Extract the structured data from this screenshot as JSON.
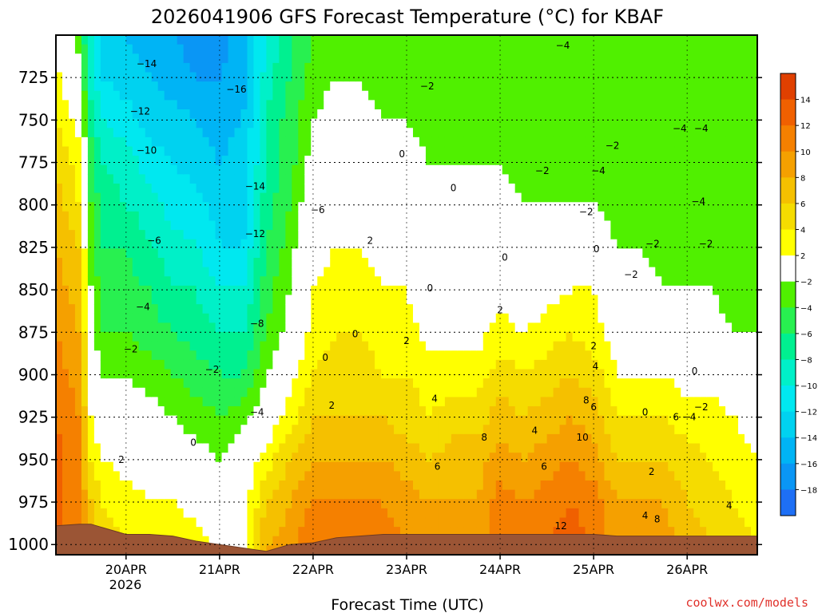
{
  "chart_data": {
    "type": "heatmap",
    "title": "2026041906 GFS Forecast Temperature (°C) for KBAF",
    "xlabel": "Forecast Time (UTC)",
    "ylabel": "",
    "credit": "coolwx.com/models",
    "yaxis": {
      "ticks": [
        725,
        750,
        775,
        800,
        825,
        850,
        875,
        900,
        925,
        950,
        975,
        1000
      ],
      "range": [
        700,
        1006
      ],
      "inverted": true
    },
    "xaxis": {
      "ticks": [
        "20APR",
        "21APR",
        "22APR",
        "23APR",
        "24APR",
        "25APR",
        "26APR"
      ],
      "sublabel": "2026",
      "range_days": [
        -0.75,
        6.75
      ]
    },
    "colorbar": {
      "levels": [
        -20,
        -18,
        -16,
        -14,
        -12,
        -10,
        -8,
        -6,
        -4,
        -2,
        2,
        4,
        6,
        8,
        10,
        12,
        14,
        16
      ],
      "labels": [
        "-18",
        "-16",
        "-14",
        "-12",
        "-10",
        "-8",
        "-6",
        "-4",
        "-2",
        "2",
        "4",
        "6",
        "8",
        "10",
        "12",
        "14"
      ],
      "colors": [
        "#1e6ff5",
        "#0a96f5",
        "#00b4f5",
        "#00d2f0",
        "#00e8f0",
        "#00f0c8",
        "#00f090",
        "#28f050",
        "#50f000",
        "#ffffff",
        "#ffff00",
        "#f5dc00",
        "#f5c000",
        "#f5a000",
        "#f58000",
        "#f06000",
        "#e04000"
      ]
    },
    "time_days": [
      -0.75,
      -0.5,
      -0.375,
      -0.25,
      0,
      0.25,
      0.5,
      0.75,
      1,
      1.25,
      1.5,
      1.75,
      2,
      2.25,
      2.5,
      2.75,
      3,
      3.25,
      3.5,
      3.75,
      4,
      4.25,
      4.5,
      4.75,
      5,
      5.25,
      5.5,
      5.75,
      6,
      6.25,
      6.5,
      6.75
    ],
    "pressure_levels": [
      700,
      725,
      750,
      775,
      800,
      825,
      850,
      875,
      900,
      925,
      950,
      975,
      1000
    ],
    "temperature_profiles": [
      [
        0,
        3,
        4,
        6,
        7,
        8,
        9,
        10,
        11,
        12,
        13,
        13,
        13
      ],
      [
        -3,
        -1,
        1,
        3,
        4,
        6,
        7,
        8,
        9,
        10,
        10,
        10,
        10
      ],
      [
        -10,
        -9,
        -7,
        -5,
        -4,
        -3,
        -2,
        -1,
        0,
        2,
        4,
        6,
        7
      ],
      [
        -13,
        -12,
        -10,
        -8,
        -7,
        -6,
        -5,
        -4,
        -2,
        0,
        2,
        4,
        5
      ],
      [
        -14,
        -13,
        -11,
        -9,
        -8,
        -6,
        -5,
        -4,
        -2,
        -1,
        1,
        3,
        4
      ],
      [
        -15,
        -14,
        -13,
        -11,
        -9,
        -8,
        -6,
        -5,
        -3,
        -1,
        1,
        2,
        3
      ],
      [
        -16,
        -15,
        -13,
        -12,
        -11,
        -9,
        -8,
        -6,
        -4,
        -2,
        0,
        2,
        4
      ],
      [
        -17,
        -16,
        -14,
        -13,
        -11,
        -10,
        -8,
        -7,
        -5,
        -3,
        -1,
        1,
        3
      ],
      [
        -17,
        -16,
        -15,
        -14,
        -13,
        -12,
        -10,
        -8,
        -6,
        -4,
        -2,
        0,
        1
      ],
      [
        -15,
        -15,
        -14,
        -13,
        -13,
        -12,
        -10,
        -8,
        -6,
        -3,
        0,
        1,
        0
      ],
      [
        -10,
        -9,
        -8,
        -8,
        -7,
        -6,
        -5,
        -4,
        -2,
        0,
        3,
        6,
        8
      ],
      [
        -6,
        -6,
        -5,
        -5,
        -4,
        -3,
        -2,
        -1,
        1,
        3,
        6,
        8,
        9
      ],
      [
        -4,
        -3,
        -2,
        -1,
        0,
        1,
        2,
        3,
        4,
        6,
        8,
        10,
        12
      ],
      [
        -3,
        -2,
        -1,
        0,
        1,
        2,
        3,
        4,
        5,
        6,
        8,
        10,
        12
      ],
      [
        -3,
        -2,
        -1,
        0,
        1,
        2,
        3,
        4,
        5,
        6,
        8,
        10,
        11
      ],
      [
        -3,
        -3,
        -2,
        -1,
        0,
        1,
        2,
        3,
        4,
        6,
        8,
        10,
        11
      ],
      [
        -3,
        -3,
        -2,
        -1,
        0,
        1,
        2,
        3,
        4,
        5,
        7,
        9,
        10
      ],
      [
        -3,
        -3,
        -3,
        -2,
        -2,
        -1,
        0,
        1,
        3,
        4,
        6,
        8,
        9
      ],
      [
        -4,
        -3,
        -3,
        -2,
        -2,
        -1,
        0,
        1,
        3,
        5,
        7,
        8,
        9
      ],
      [
        -4,
        -3,
        -3,
        -2,
        -2,
        -1,
        0,
        1,
        3,
        5,
        7,
        8,
        9
      ],
      [
        -4,
        -3,
        -3,
        -2,
        -1,
        0,
        1,
        3,
        5,
        7,
        9,
        11,
        12
      ],
      [
        -4,
        -4,
        -3,
        -3,
        -2,
        -1,
        0,
        2,
        4,
        6,
        8,
        10,
        11
      ],
      [
        -4,
        -4,
        -3,
        -3,
        -2,
        -1,
        1,
        3,
        5,
        7,
        9,
        11,
        12
      ],
      [
        -4,
        -4,
        -3,
        -3,
        -2,
        0,
        2,
        4,
        6,
        8,
        10,
        12,
        13
      ],
      [
        -4,
        -4,
        -3,
        -3,
        -2,
        0,
        2,
        3,
        5,
        7,
        9,
        11,
        12
      ],
      [
        -4,
        -4,
        -4,
        -3,
        -3,
        -2,
        -1,
        1,
        2,
        4,
        6,
        8,
        9
      ],
      [
        -4,
        -4,
        -4,
        -4,
        -3,
        -2,
        -1,
        1,
        2,
        4,
        6,
        8,
        9
      ],
      [
        -4,
        -4,
        -4,
        -4,
        -3,
        -3,
        -2,
        0,
        2,
        4,
        6,
        8,
        9
      ],
      [
        -4,
        -4,
        -4,
        -4,
        -3,
        -3,
        -2,
        -1,
        1,
        3,
        5,
        6,
        7
      ],
      [
        -4,
        -4,
        -4,
        -4,
        -4,
        -3,
        -2,
        -1,
        1,
        3,
        4,
        5,
        6
      ],
      [
        -4,
        -4,
        -4,
        -4,
        -4,
        -3,
        -3,
        -2,
        0,
        2,
        3,
        4,
        5
      ],
      [
        -4,
        -4,
        -4,
        -4,
        -4,
        -3,
        -3,
        -2,
        0,
        1,
        2,
        3,
        4
      ]
    ],
    "terrain_pressure": [
      989,
      988,
      988,
      990,
      994,
      994,
      995,
      998,
      1000,
      1002,
      1004,
      1000,
      999,
      996,
      995,
      994,
      994,
      994,
      994,
      994,
      994,
      994,
      994,
      994,
      994,
      995,
      995,
      995,
      995,
      995,
      995,
      995
    ],
    "terrain_color": "#9b5535",
    "contour_labels": [
      {
        "text": "−14",
        "day": 0.22,
        "p": 717
      },
      {
        "text": "−12",
        "day": 0.15,
        "p": 745
      },
      {
        "text": "−10",
        "day": 0.22,
        "p": 768
      },
      {
        "text": "−6",
        "day": 0.3,
        "p": 821
      },
      {
        "text": "−4",
        "day": 0.18,
        "p": 860
      },
      {
        "text": "−2",
        "day": 0.05,
        "p": 885
      },
      {
        "text": "2",
        "day": -0.05,
        "p": 950
      },
      {
        "text": "−16",
        "day": 1.18,
        "p": 732
      },
      {
        "text": "−14",
        "day": 1.38,
        "p": 789
      },
      {
        "text": "−12",
        "day": 1.38,
        "p": 817
      },
      {
        "text": "−8",
        "day": 1.4,
        "p": 870
      },
      {
        "text": "−4",
        "day": 1.4,
        "p": 922
      },
      {
        "text": "−2",
        "day": 0.92,
        "p": 897
      },
      {
        "text": "0",
        "day": 0.72,
        "p": 940
      },
      {
        "text": "−6",
        "day": 2.05,
        "p": 803
      },
      {
        "text": "0",
        "day": 2.13,
        "p": 890
      },
      {
        "text": "2",
        "day": 2.2,
        "p": 918
      },
      {
        "text": "0",
        "day": 2.45,
        "p": 876
      },
      {
        "text": "2",
        "day": 2.61,
        "p": 821
      },
      {
        "text": "0",
        "day": 2.95,
        "p": 770
      },
      {
        "text": "−2",
        "day": 3.22,
        "p": 730
      },
      {
        "text": "0",
        "day": 3.5,
        "p": 790
      },
      {
        "text": "0",
        "day": 3.25,
        "p": 849
      },
      {
        "text": "2",
        "day": 3.0,
        "p": 880
      },
      {
        "text": "4",
        "day": 3.3,
        "p": 914
      },
      {
        "text": "6",
        "day": 3.33,
        "p": 954
      },
      {
        "text": "8",
        "day": 3.83,
        "p": 937
      },
      {
        "text": "0",
        "day": 4.05,
        "p": 831
      },
      {
        "text": "2",
        "day": 4.0,
        "p": 862
      },
      {
        "text": "4",
        "day": 4.37,
        "p": 933
      },
      {
        "text": "6",
        "day": 4.47,
        "p": 954
      },
      {
        "text": "12",
        "day": 4.65,
        "p": 989
      },
      {
        "text": "−4",
        "day": 4.67,
        "p": 706
      },
      {
        "text": "−2",
        "day": 4.45,
        "p": 780
      },
      {
        "text": "−2",
        "day": 4.92,
        "p": 804
      },
      {
        "text": "−4",
        "day": 5.05,
        "p": 780
      },
      {
        "text": "−2",
        "day": 5.2,
        "p": 765
      },
      {
        "text": "0",
        "day": 5.03,
        "p": 826
      },
      {
        "text": "2",
        "day": 5.0,
        "p": 883
      },
      {
        "text": "4",
        "day": 5.02,
        "p": 895
      },
      {
        "text": "6",
        "day": 5.0,
        "p": 919
      },
      {
        "text": "8",
        "day": 4.92,
        "p": 915
      },
      {
        "text": "10",
        "day": 4.88,
        "p": 937
      },
      {
        "text": "−2",
        "day": 5.4,
        "p": 841
      },
      {
        "text": "−2",
        "day": 5.63,
        "p": 823
      },
      {
        "text": "−4",
        "day": 5.92,
        "p": 755
      },
      {
        "text": "−4",
        "day": 6.15,
        "p": 755
      },
      {
        "text": "−4",
        "day": 6.12,
        "p": 798
      },
      {
        "text": "−2",
        "day": 6.2,
        "p": 823
      },
      {
        "text": "0",
        "day": 5.55,
        "p": 922
      },
      {
        "text": "2",
        "day": 5.62,
        "p": 957
      },
      {
        "text": "4",
        "day": 5.55,
        "p": 983
      },
      {
        "text": "8",
        "day": 5.68,
        "p": 985
      },
      {
        "text": "0",
        "day": 6.08,
        "p": 898
      },
      {
        "text": "−2",
        "day": 6.15,
        "p": 919
      },
      {
        "text": "6",
        "day": 5.88,
        "p": 925
      },
      {
        "text": "−4",
        "day": 6.02,
        "p": 925
      },
      {
        "text": "4",
        "day": 6.45,
        "p": 977
      }
    ]
  }
}
